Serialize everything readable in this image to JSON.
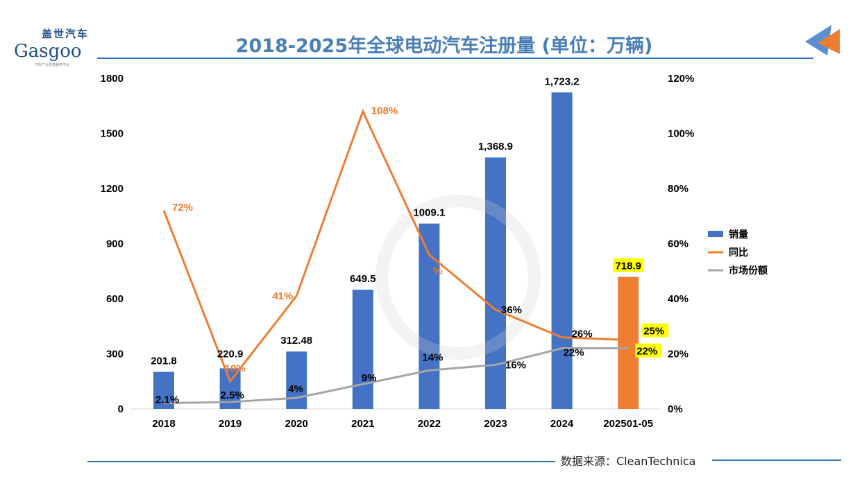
{
  "header": {
    "title": "2018-2025年全球电动汽车注册量 (单位：万辆)",
    "logo_cn": "盖世汽车",
    "logo_en": "Gasgoo",
    "logo_sub": "汽车产业信息服务平台"
  },
  "footer": {
    "source": "数据来源：CleanTechnica"
  },
  "colors": {
    "bar": "#4472c4",
    "bar_highlight": "#ed7d31",
    "yoy": "#ed7d31",
    "share": "#a5a5a5",
    "title": "#4a7fb5",
    "label_highlight": "#ffff00"
  },
  "chart_data": {
    "type": "bar",
    "title": "2018-2025年全球电动汽车注册量 (单位：万辆)",
    "categories": [
      "2018",
      "2019",
      "2020",
      "2021",
      "2022",
      "2023",
      "2024",
      "202501-05"
    ],
    "y_left": {
      "range": [
        0,
        1800
      ],
      "ticks": [
        "0",
        "300",
        "600",
        "900",
        "1200",
        "1500",
        "1800"
      ]
    },
    "y_right": {
      "range": [
        0,
        120
      ],
      "ticks": [
        "0%",
        "20%",
        "40%",
        "60%",
        "80%",
        "100%",
        "120%"
      ]
    },
    "grid": false,
    "legend_position": "right",
    "series": [
      {
        "name": "销量",
        "type": "bar",
        "axis": "left",
        "values": [
          201.8,
          220.9,
          312.48,
          649.5,
          1009.1,
          1368.9,
          1723.2,
          718.9
        ],
        "labels": [
          "201.8",
          "220.9",
          "312.48",
          "649.5",
          "1009.1",
          "1,368.9",
          "1,723.2",
          "718.9"
        ]
      },
      {
        "name": "同比",
        "type": "line",
        "axis": "right",
        "values": [
          72,
          10,
          41,
          108,
          56,
          36,
          26,
          25
        ],
        "labels": [
          "72%",
          "10%",
          "41%",
          "108%",
          "%",
          "36%",
          "26%",
          "25%"
        ]
      },
      {
        "name": "市场份额",
        "type": "line",
        "axis": "right",
        "values": [
          2.1,
          2.5,
          4,
          9,
          14,
          16,
          22,
          22
        ],
        "labels": [
          "2.1%",
          "2.5%",
          "4%",
          "9%",
          "14%",
          "16%",
          "22%",
          "22%"
        ]
      }
    ]
  }
}
